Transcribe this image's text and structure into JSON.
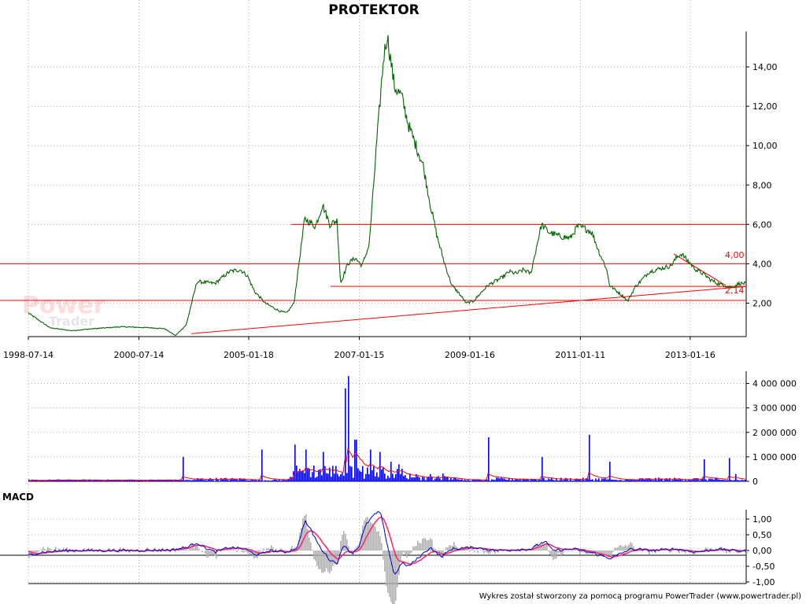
{
  "title": "PROTEKTOR",
  "footer": "Wykres został stworzony za pomocą programu PowerTrader (www.powertrader.pl)",
  "watermark": {
    "line1": "Power",
    "line2": "Trader"
  },
  "colors": {
    "price_line": "#006400",
    "resistance": "#ff0000",
    "volume_bar": "#0000ff",
    "volume_avg": "#ff0000",
    "macd_line": "#0000cc",
    "macd_signal": "#ff2a6d",
    "macd_hist": "#b0b0b0"
  },
  "chart_data": [
    {
      "type": "line",
      "panel": "price",
      "x_tick_labels": [
        "1998-07-14",
        "2000-07-14",
        "2005-01-18",
        "2007-01-15",
        "2009-01-16",
        "2011-01-11",
        "2013-01-16"
      ],
      "y_tick_labels": [
        "2,00",
        "4,00",
        "6,00",
        "8,00",
        "10,00",
        "12,00",
        "14,00"
      ],
      "ylim": [
        0.3,
        15.8
      ],
      "grid": true,
      "annotations": [
        "4,00",
        "2,14"
      ],
      "horizontal_lines": [
        6.0,
        4.0,
        2.85,
        2.14
      ],
      "series_points": [
        [
          0,
          1.5
        ],
        [
          0.03,
          0.75
        ],
        [
          0.06,
          0.6
        ],
        [
          0.09,
          0.7
        ],
        [
          0.13,
          0.8
        ],
        [
          0.17,
          0.75
        ],
        [
          0.19,
          0.7
        ],
        [
          0.205,
          0.35
        ],
        [
          0.22,
          0.9
        ],
        [
          0.235,
          3.1
        ],
        [
          0.26,
          3.0
        ],
        [
          0.28,
          3.6
        ],
        [
          0.295,
          3.7
        ],
        [
          0.305,
          3.4
        ],
        [
          0.315,
          2.6
        ],
        [
          0.33,
          2.0
        ],
        [
          0.35,
          1.6
        ],
        [
          0.36,
          1.5
        ],
        [
          0.37,
          2.0
        ],
        [
          0.385,
          6.3
        ],
        [
          0.4,
          5.9
        ],
        [
          0.41,
          7.0
        ],
        [
          0.42,
          6.0
        ],
        [
          0.43,
          6.2
        ],
        [
          0.435,
          3.0
        ],
        [
          0.445,
          4.0
        ],
        [
          0.455,
          4.3
        ],
        [
          0.465,
          3.9
        ],
        [
          0.475,
          5.0
        ],
        [
          0.485,
          10.0
        ],
        [
          0.495,
          14.5
        ],
        [
          0.5,
          15.6
        ],
        [
          0.51,
          13.0
        ],
        [
          0.52,
          12.5
        ],
        [
          0.53,
          11.0
        ],
        [
          0.54,
          10.0
        ],
        [
          0.55,
          9.0
        ],
        [
          0.56,
          7.0
        ],
        [
          0.57,
          5.3
        ],
        [
          0.58,
          4.0
        ],
        [
          0.59,
          2.9
        ],
        [
          0.6,
          2.5
        ],
        [
          0.61,
          2.0
        ],
        [
          0.62,
          2.1
        ],
        [
          0.63,
          2.5
        ],
        [
          0.64,
          2.9
        ],
        [
          0.65,
          3.1
        ],
        [
          0.66,
          3.3
        ],
        [
          0.67,
          3.6
        ],
        [
          0.68,
          3.5
        ],
        [
          0.69,
          3.7
        ],
        [
          0.7,
          3.5
        ],
        [
          0.71,
          5.2
        ],
        [
          0.715,
          6.0
        ],
        [
          0.725,
          5.6
        ],
        [
          0.74,
          5.4
        ],
        [
          0.755,
          5.3
        ],
        [
          0.765,
          5.9
        ],
        [
          0.775,
          5.8
        ],
        [
          0.785,
          5.6
        ],
        [
          0.795,
          4.6
        ],
        [
          0.805,
          3.8
        ],
        [
          0.81,
          2.9
        ],
        [
          0.82,
          2.6
        ],
        [
          0.83,
          2.3
        ],
        [
          0.835,
          2.1
        ],
        [
          0.845,
          2.8
        ],
        [
          0.855,
          3.2
        ],
        [
          0.865,
          3.6
        ],
        [
          0.875,
          3.7
        ],
        [
          0.885,
          3.8
        ],
        [
          0.895,
          3.9
        ],
        [
          0.905,
          4.4
        ],
        [
          0.91,
          4.5
        ],
        [
          0.92,
          4.1
        ],
        [
          0.93,
          3.7
        ],
        [
          0.94,
          3.5
        ],
        [
          0.95,
          3.2
        ],
        [
          0.96,
          3.0
        ],
        [
          0.97,
          2.9
        ],
        [
          0.98,
          2.8
        ],
        [
          0.99,
          3.0
        ],
        [
          1.0,
          3.0
        ]
      ]
    },
    {
      "type": "bar",
      "panel": "volume",
      "y_tick_labels": [
        "0",
        "1 000 000",
        "2 000 000",
        "3 000 000",
        "4 000 000"
      ],
      "ylim": [
        0,
        4500000
      ],
      "spikes": [
        [
          0.215,
          1000000
        ],
        [
          0.325,
          1300000
        ],
        [
          0.37,
          1500000
        ],
        [
          0.385,
          1300000
        ],
        [
          0.41,
          1200000
        ],
        [
          0.44,
          3800000
        ],
        [
          0.445,
          4300000
        ],
        [
          0.455,
          1700000
        ],
        [
          0.475,
          1300000
        ],
        [
          0.49,
          1200000
        ],
        [
          0.505,
          800000
        ],
        [
          0.64,
          1800000
        ],
        [
          0.715,
          1000000
        ],
        [
          0.78,
          1900000
        ],
        [
          0.81,
          800000
        ],
        [
          0.94,
          900000
        ],
        [
          0.975,
          950000
        ],
        [
          0.985,
          300000
        ]
      ]
    },
    {
      "type": "line",
      "panel": "macd",
      "title": "MACD",
      "y_tick_labels": [
        "-1,00",
        "-0,50",
        "0,00",
        "0,50",
        "1,00"
      ],
      "ylim": [
        -1.05,
        1.3
      ],
      "series_points": [
        [
          0.0,
          -0.15
        ],
        [
          0.02,
          -0.05
        ],
        [
          0.05,
          0.0
        ],
        [
          0.1,
          0.0
        ],
        [
          0.15,
          0.0
        ],
        [
          0.2,
          0.02
        ],
        [
          0.22,
          0.1
        ],
        [
          0.235,
          0.25
        ],
        [
          0.245,
          0.1
        ],
        [
          0.26,
          -0.05
        ],
        [
          0.28,
          0.1
        ],
        [
          0.3,
          0.05
        ],
        [
          0.32,
          -0.15
        ],
        [
          0.335,
          0.0
        ],
        [
          0.36,
          -0.05
        ],
        [
          0.375,
          0.1
        ],
        [
          0.385,
          0.95
        ],
        [
          0.395,
          0.6
        ],
        [
          0.405,
          0.15
        ],
        [
          0.42,
          -0.3
        ],
        [
          0.43,
          -0.4
        ],
        [
          0.44,
          0.2
        ],
        [
          0.45,
          -0.1
        ],
        [
          0.46,
          0.1
        ],
        [
          0.47,
          0.8
        ],
        [
          0.48,
          1.1
        ],
        [
          0.49,
          1.25
        ],
        [
          0.5,
          0.2
        ],
        [
          0.51,
          -0.8
        ],
        [
          0.52,
          -0.4
        ],
        [
          0.53,
          -0.5
        ],
        [
          0.545,
          -0.2
        ],
        [
          0.56,
          0.1
        ],
        [
          0.575,
          -0.2
        ],
        [
          0.59,
          0.05
        ],
        [
          0.62,
          0.1
        ],
        [
          0.65,
          0.0
        ],
        [
          0.7,
          0.05
        ],
        [
          0.72,
          0.3
        ],
        [
          0.73,
          0.0
        ],
        [
          0.76,
          0.05
        ],
        [
          0.78,
          -0.05
        ],
        [
          0.79,
          -0.1
        ],
        [
          0.81,
          -0.25
        ],
        [
          0.84,
          0.05
        ],
        [
          0.87,
          0.0
        ],
        [
          0.9,
          0.05
        ],
        [
          0.93,
          -0.05
        ],
        [
          0.96,
          0.05
        ],
        [
          0.98,
          0.0
        ],
        [
          1.0,
          -0.02
        ]
      ]
    }
  ]
}
